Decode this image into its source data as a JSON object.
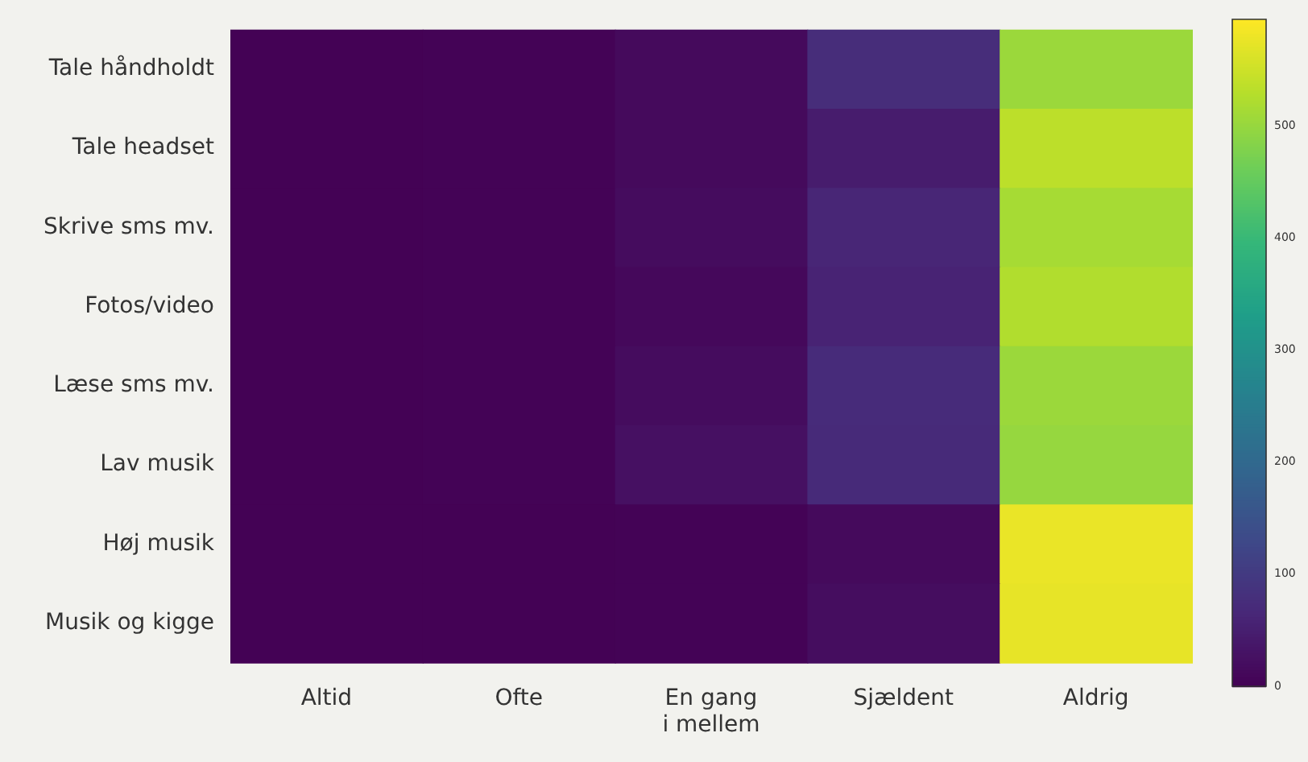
{
  "chart_data": {
    "type": "heatmap",
    "categories": [
      "Altid",
      "Ofte",
      "En gang i mellem",
      "Sjældent",
      "Aldrig"
    ],
    "y_categories": [
      "Tale håndholdt",
      "Tale headset",
      "Skrive sms mv.",
      "Fotos/video",
      "Læse sms mv.",
      "Lav musik",
      "Høj musik",
      "Musik og kigge"
    ],
    "cells": [
      [
        2,
        3,
        15,
        75,
        505
      ],
      [
        2,
        3,
        15,
        45,
        535
      ],
      [
        2,
        3,
        18,
        62,
        515
      ],
      [
        2,
        3,
        12,
        58,
        525
      ],
      [
        2,
        3,
        18,
        72,
        505
      ],
      [
        2,
        3,
        25,
        70,
        500
      ],
      [
        1,
        2,
        4,
        15,
        578
      ],
      [
        1,
        2,
        3,
        20,
        575
      ]
    ],
    "clim": [
      0,
      595
    ],
    "cticks": [
      0,
      100,
      200,
      300,
      400,
      500
    ]
  }
}
